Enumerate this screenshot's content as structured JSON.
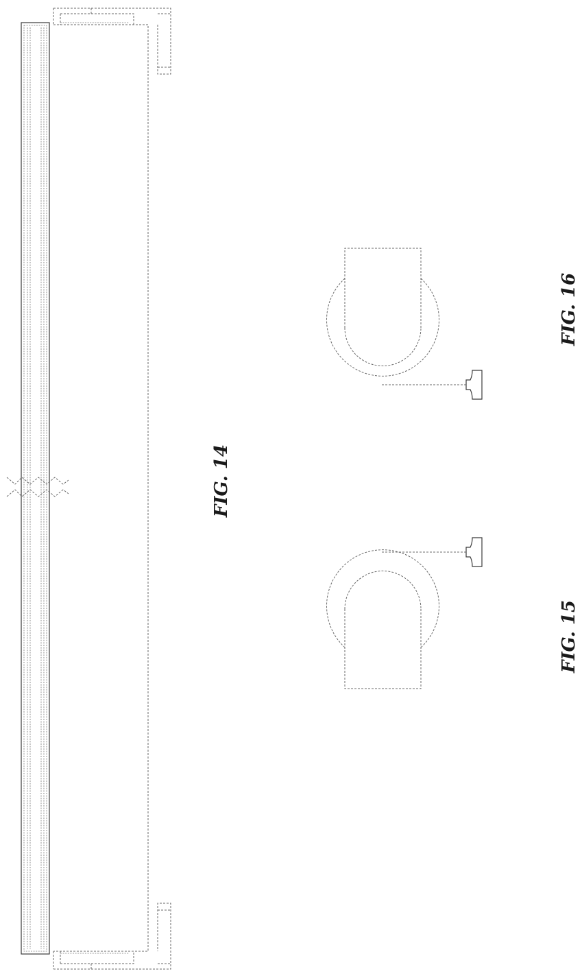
{
  "figures": {
    "fig14": {
      "label": "FIG. 14"
    },
    "fig15": {
      "label": "FIG. 15"
    },
    "fig16": {
      "label": "FIG. 16"
    }
  }
}
